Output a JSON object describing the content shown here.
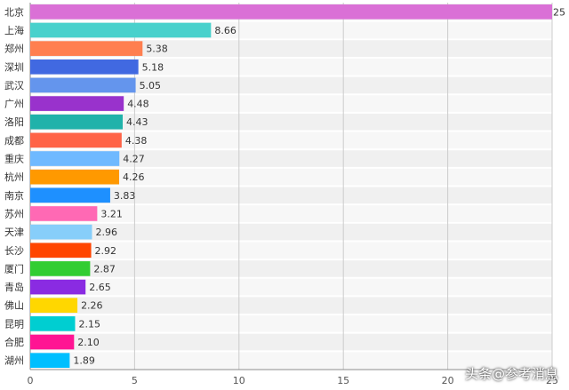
{
  "chart_data": {
    "type": "bar",
    "orientation": "horizontal",
    "categories": [
      "北京",
      "上海",
      "郑州",
      "深圳",
      "武汉",
      "广州",
      "洛阳",
      "成都",
      "重庆",
      "杭州",
      "南京",
      "苏州",
      "天津",
      "长沙",
      "厦门",
      "青岛",
      "佛山",
      "昆明",
      "合肥",
      "湖州"
    ],
    "values": [
      25,
      8.66,
      5.38,
      5.18,
      5.05,
      4.48,
      4.43,
      4.38,
      4.27,
      4.26,
      3.83,
      3.21,
      2.96,
      2.92,
      2.87,
      2.65,
      2.26,
      2.15,
      2.1,
      1.89
    ],
    "value_labels": [
      "25",
      "8.66",
      "5.38",
      "5.18",
      "5.05",
      "4.48",
      "4.43",
      "4.38",
      "4.27",
      "4.26",
      "3.83",
      "3.21",
      "2.96",
      "2.92",
      "2.87",
      "2.65",
      "2.26",
      "2.15",
      "2.10",
      "1.89"
    ],
    "colors": [
      "#da70d6",
      "#48d1cc",
      "#ff7f50",
      "#4169e1",
      "#6495ed",
      "#9932cc",
      "#20b2aa",
      "#ff6347",
      "#6fb9ff",
      "#ff9900",
      "#1e90ff",
      "#ff69b4",
      "#87cefa",
      "#ff4500",
      "#32cd32",
      "#8a2be2",
      "#ffd700",
      "#00ced1",
      "#ff1493",
      "#00bfff"
    ],
    "xlim": [
      0,
      25
    ],
    "xticks": [
      "0",
      "5",
      "10",
      "15",
      "20",
      "25"
    ],
    "grid": true,
    "title": "",
    "xlabel": "",
    "ylabel": ""
  },
  "watermark": "头条@参考消息"
}
